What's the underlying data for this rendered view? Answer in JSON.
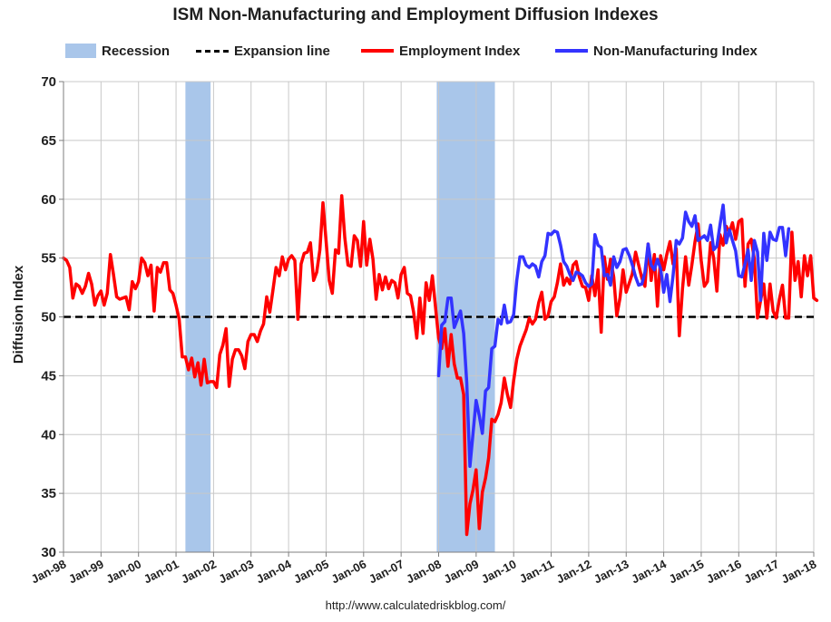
{
  "chart_data": {
    "type": "line",
    "title": "ISM Non-Manufacturing and Employment Diffusion Indexes",
    "xlabel": "",
    "ylabel": "Diffusion Index",
    "ylim": [
      30,
      70
    ],
    "yticks": [
      30,
      35,
      40,
      45,
      50,
      55,
      60,
      65,
      70
    ],
    "xlim": [
      1998.0,
      2018.0
    ],
    "x_tick_labels": [
      "Jan-98",
      "Jan-99",
      "Jan-00",
      "Jan-01",
      "Jan-02",
      "Jan-03",
      "Jan-04",
      "Jan-05",
      "Jan-06",
      "Jan-07",
      "Jan-08",
      "Jan-09",
      "Jan-10",
      "Jan-11",
      "Jan-12",
      "Jan-13",
      "Jan-14",
      "Jan-15",
      "Jan-16",
      "Jan-17",
      "Jan-18"
    ],
    "grid": true,
    "legend": {
      "position": "top",
      "recession": "Recession",
      "expansion": "Expansion line",
      "employment": "Employment Index",
      "nonmfg": "Non-Manufacturing Index"
    },
    "expansion_line": 50,
    "recessions": [
      {
        "start": 2001.25,
        "end": 2001.92
      },
      {
        "start": 2007.95,
        "end": 2009.5
      }
    ],
    "series": [
      {
        "name": "Employment Index",
        "color": "#ff0000",
        "x_start": 1998.0,
        "step": 0.0833333,
        "values": [
          55,
          54.8,
          54.2,
          51.6,
          52.8,
          52.6,
          52,
          52.6,
          53.7,
          52.8,
          51,
          51.8,
          52.2,
          51,
          52,
          55.3,
          53.6,
          51.7,
          51.5,
          51.6,
          51.7,
          50.6,
          53,
          52.4,
          53,
          55,
          54.6,
          53.5,
          54.4,
          50.5,
          54.2,
          53.8,
          54.6,
          54.6,
          52.3,
          52,
          51,
          49.8,
          46.6,
          46.6,
          45.5,
          46.5,
          44.9,
          46.1,
          44.2,
          46.4,
          44.4,
          44.5,
          44.5,
          44,
          46.8,
          47.6,
          49,
          44.1,
          46.4,
          47.2,
          47.2,
          46.7,
          45.6,
          47.9,
          48.5,
          48.5,
          47.9,
          48.8,
          49.4,
          51.7,
          50.4,
          52.3,
          54.2,
          53.5,
          55.1,
          54,
          54.9,
          55.2,
          54.8,
          49.8,
          54.5,
          55.4,
          55.5,
          56.3,
          53.1,
          53.8,
          55.7,
          59.7,
          56.5,
          53.1,
          52,
          55.7,
          55.4,
          60.3,
          56.7,
          54.4,
          54.3,
          56.9,
          56.5,
          54.3,
          58.1,
          54.4,
          56.6,
          54.9,
          51.5,
          53.6,
          52.3,
          53.4,
          52.4,
          53.1,
          52.9,
          51.6,
          53.6,
          54.2,
          52,
          51.8,
          50.4,
          48.2,
          51.6,
          48.6,
          52.9,
          51.4,
          53.5,
          50.8,
          48.2,
          47.3,
          49,
          45.8,
          48.5,
          46,
          44.8,
          44.8,
          43.4,
          31.5,
          34.1,
          35.3,
          37,
          32,
          35.1,
          36.3,
          38,
          41.3,
          41.1,
          41.7,
          42.7,
          44.8,
          43.4,
          42.3,
          44.6,
          46.4,
          47.5,
          48.2,
          48.9,
          49.9,
          49.4,
          49.8,
          51.2,
          52.1,
          49.8,
          50.1,
          51.3,
          51.7,
          52.9,
          54.5,
          52.7,
          53.3,
          52.8,
          54.4,
          54.7,
          53.4,
          52.6,
          52.5,
          51.4,
          53.5,
          51.8,
          54,
          48.7,
          55.1,
          53.2,
          54.9,
          53.4,
          50.1,
          51.6,
          54,
          52.1,
          52.9,
          53.7,
          55.5,
          54.4,
          53.3,
          52.6,
          56.2,
          53.1,
          55.3,
          50.9,
          55.2,
          54,
          55.3,
          56.4,
          54.5,
          55.8,
          48.4,
          52.4,
          55.1,
          52.7,
          54.4,
          56.4,
          57.9,
          54.8,
          52.6,
          53,
          56.3,
          55,
          52.2,
          57,
          56.1,
          57.7,
          57.2,
          58,
          56.6,
          58.1,
          58.3,
          52.6,
          56.2,
          56.6,
          54.9,
          49.9,
          51.4,
          52.8,
          49.9,
          52.8,
          50.5,
          49.9,
          51.5,
          52.7,
          49.9,
          49.9,
          57.2,
          53.1,
          54.7,
          51.7,
          55.2,
          53.5,
          55.2,
          51.6,
          51.4
        ]
      },
      {
        "name": "Non-Manufacturing Index",
        "color": "#3333ff",
        "x_start": 2008.0,
        "step": 0.0833333,
        "values": [
          45,
          49.3,
          49.6,
          51.6,
          51.6,
          49.1,
          49.8,
          50.5,
          48.6,
          44.4,
          37.3,
          40.1,
          42.9,
          41.6,
          40.1,
          43.7,
          44,
          47.3,
          47.5,
          49.8,
          49.4,
          51,
          49.5,
          49.6,
          50.2,
          53.1,
          55.1,
          55.1,
          54.4,
          54.2,
          54.5,
          54.3,
          53.4,
          54.7,
          55.2,
          57.1,
          57,
          57.3,
          57.2,
          56.1,
          54.7,
          54.3,
          53.6,
          53.1,
          53.8,
          53.7,
          53.5,
          52.9,
          52.6,
          52.8,
          57,
          56.1,
          55.9,
          53.5,
          53.6,
          52.7,
          55.1,
          54.2,
          54.7,
          55.7,
          55.8,
          55.2,
          54.4,
          53.4,
          52.7,
          52.8,
          53.8,
          56.2,
          54.4,
          54,
          54.9,
          54.1,
          52.1,
          53.6,
          51.3,
          53.5,
          56.5,
          56.2,
          56.7,
          58.9,
          58.1,
          57.7,
          58.6,
          56.5,
          56.7,
          56.9,
          56.5,
          57.8,
          55.7,
          56,
          57.8,
          59.5,
          56.3,
          57.4,
          56.5,
          55.6,
          53.5,
          53.4,
          54.5,
          55.7,
          53.1,
          56.5,
          55.5,
          51.4,
          57.1,
          54.8,
          57.2,
          56.6,
          56.5,
          57.6,
          57.6,
          55.2,
          57.5
        ]
      }
    ]
  },
  "footer": {
    "url": "http://www.calculatedriskblog.com/"
  }
}
